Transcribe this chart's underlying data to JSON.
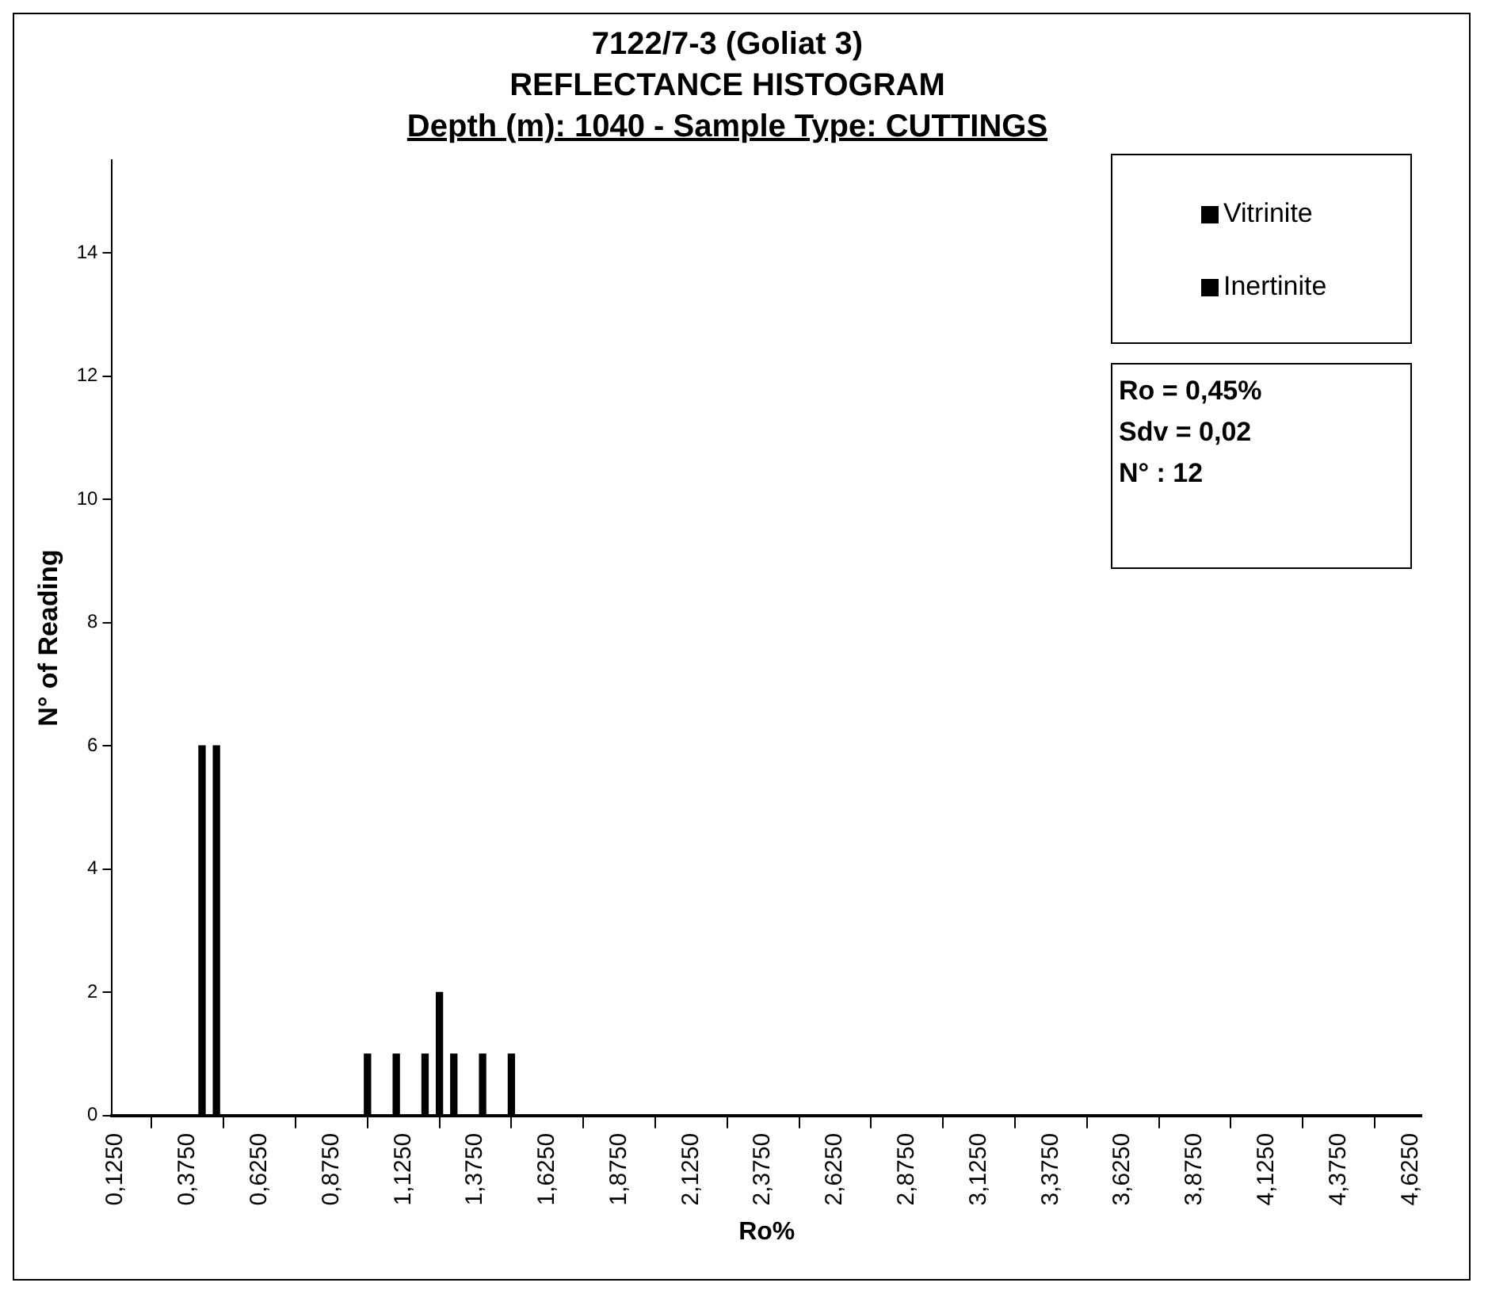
{
  "chart_data": {
    "type": "bar",
    "title": "7122/7-3 (Goliat 3)",
    "subtitle": "REFLECTANCE HISTOGRAM",
    "xlabel": "Ro%",
    "ylabel": "N° of Reading",
    "annotations": [
      "Depth (m): 1040 - Sample Type: CUTTINGS",
      "Ro = 0,45%",
      "Sdv = 0,02",
      "N° : 12"
    ],
    "series": [
      {
        "name": "Vitrinite",
        "color": "#000000",
        "x": [
          0.425,
          0.475
        ],
        "values": [
          6,
          6
        ]
      },
      {
        "name": "Inertinite",
        "color": "#000000",
        "x": [
          1.0,
          1.1,
          1.2,
          1.25,
          1.3,
          1.4,
          1.5
        ],
        "values": [
          1,
          1,
          1,
          2,
          1,
          1,
          1
        ]
      }
    ],
    "xlim": [
      0.1125,
      4.6625
    ],
    "xticks": [
      {
        "value": 0.125,
        "label": "0,1250"
      },
      {
        "value": 0.375,
        "label": "0,3750"
      },
      {
        "value": 0.625,
        "label": "0,6250"
      },
      {
        "value": 0.875,
        "label": "0,8750"
      },
      {
        "value": 1.125,
        "label": "1,1250"
      },
      {
        "value": 1.375,
        "label": "1,3750"
      },
      {
        "value": 1.625,
        "label": "1,6250"
      },
      {
        "value": 1.875,
        "label": "1,8750"
      },
      {
        "value": 2.125,
        "label": "2,1250"
      },
      {
        "value": 2.375,
        "label": "2,3750"
      },
      {
        "value": 2.625,
        "label": "2,6250"
      },
      {
        "value": 2.875,
        "label": "2,8750"
      },
      {
        "value": 3.125,
        "label": "3,1250"
      },
      {
        "value": 3.375,
        "label": "3,3750"
      },
      {
        "value": 3.625,
        "label": "3,6250"
      },
      {
        "value": 3.875,
        "label": "3,8750"
      },
      {
        "value": 4.125,
        "label": "4,1250"
      },
      {
        "value": 4.375,
        "label": "4,3750"
      },
      {
        "value": 4.625,
        "label": "4,6250"
      }
    ],
    "ylim": [
      0,
      15.5
    ],
    "yticks": [
      0,
      2,
      4,
      6,
      8,
      10,
      12,
      14
    ],
    "grid": false,
    "legend": "top right"
  }
}
